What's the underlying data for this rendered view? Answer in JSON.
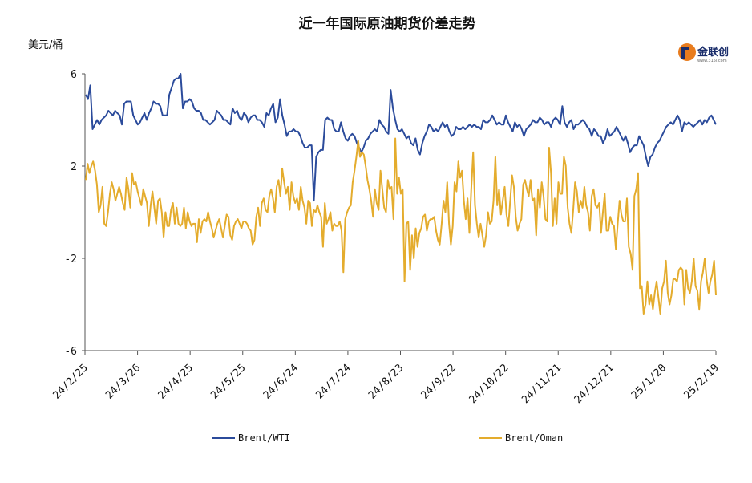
{
  "chart_data": {
    "type": "line",
    "title": "近一年国际原油期货价差走势",
    "ylabel": "美元/桶",
    "xlabel": "",
    "ylim": [
      -6,
      6
    ],
    "yticks": [
      6,
      2,
      -2,
      -6
    ],
    "xlim": [
      "2024-02-25",
      "2025-02-19"
    ],
    "xticks": [
      "24/2/25",
      "24/3/26",
      "24/4/25",
      "24/5/25",
      "24/6/24",
      "24/7/24",
      "24/8/23",
      "24/9/22",
      "24/10/22",
      "24/11/21",
      "24/12/21",
      "25/1/20",
      "25/2/19"
    ],
    "legend_position": "bottom",
    "grid": false,
    "series": [
      {
        "name": "Brent/WTI",
        "color": "#2b4b9b",
        "values": [
          5.1,
          4.9,
          5.5,
          3.6,
          3.8,
          4.0,
          3.8,
          4.0,
          4.1,
          4.2,
          4.4,
          4.3,
          4.2,
          4.4,
          4.3,
          4.2,
          3.8,
          4.7,
          4.8,
          4.8,
          4.8,
          4.2,
          4.0,
          3.8,
          3.9,
          4.1,
          4.3,
          4.0,
          4.3,
          4.5,
          4.8,
          4.7,
          4.7,
          4.6,
          4.2,
          4.2,
          4.2,
          5.1,
          5.4,
          5.7,
          5.8,
          5.8,
          6.0,
          4.5,
          4.8,
          4.8,
          4.9,
          4.8,
          4.5,
          4.4,
          4.4,
          4.3,
          4.0,
          4.0,
          3.9,
          3.8,
          3.9,
          4.0,
          4.4,
          4.3,
          4.2,
          4.0,
          4.0,
          3.9,
          3.8,
          4.5,
          4.3,
          4.4,
          4.1,
          4.0,
          4.3,
          4.2,
          3.9,
          4.1,
          4.2,
          4.2,
          4.0,
          4.0,
          3.9,
          3.7,
          4.3,
          4.2,
          4.5,
          4.7,
          3.9,
          4.1,
          4.9,
          4.2,
          3.8,
          3.3,
          3.5,
          3.5,
          3.6,
          3.5,
          3.5,
          3.3,
          3.0,
          2.8,
          2.8,
          2.9,
          2.9,
          0.5,
          2.4,
          2.6,
          2.7,
          2.7,
          4.0,
          4.1,
          4.0,
          4.0,
          3.6,
          3.5,
          3.5,
          3.9,
          3.5,
          3.2,
          3.1,
          3.3,
          3.4,
          3.3,
          3.0,
          2.8,
          2.6,
          2.8,
          3.1,
          3.2,
          3.4,
          3.5,
          3.6,
          3.5,
          4.0,
          3.8,
          3.7,
          3.5,
          3.4,
          5.3,
          4.5,
          4.0,
          3.6,
          3.5,
          3.6,
          3.4,
          3.2,
          3.3,
          3.0,
          2.9,
          3.2,
          2.7,
          2.5,
          3.0,
          3.3,
          3.5,
          3.8,
          3.7,
          3.5,
          3.6,
          3.5,
          3.7,
          3.9,
          3.7,
          3.8,
          3.5,
          3.3,
          3.4,
          3.7,
          3.6,
          3.6,
          3.7,
          3.6,
          3.7,
          3.8,
          3.7,
          3.8,
          3.7,
          3.7,
          3.6,
          4.0,
          3.9,
          3.9,
          4.0,
          4.2,
          4.0,
          3.8,
          3.9,
          3.8,
          3.8,
          4.2,
          3.9,
          3.7,
          3.5,
          3.9,
          3.7,
          3.8,
          3.6,
          3.3,
          3.6,
          3.7,
          3.8,
          4.0,
          3.9,
          3.9,
          4.1,
          4.0,
          3.8,
          3.9,
          3.9,
          3.7,
          4.0,
          4.1,
          4.0,
          3.8,
          4.6,
          3.9,
          3.7,
          3.9,
          4.0,
          3.6,
          3.8,
          3.8,
          3.9,
          4.0,
          3.9,
          3.7,
          3.6,
          3.3,
          3.6,
          3.5,
          3.3,
          3.3,
          3.0,
          3.2,
          3.6,
          3.3,
          3.4,
          3.5,
          3.7,
          3.5,
          3.3,
          3.1,
          3.3,
          3.0,
          2.6,
          2.8,
          2.9,
          2.9,
          3.3,
          3.1,
          2.9,
          2.4,
          2.0,
          2.4,
          2.5,
          2.8,
          3.0,
          3.1,
          3.3,
          3.5,
          3.7,
          3.8,
          3.9,
          3.8,
          4.0,
          4.2,
          4.0,
          3.5,
          3.9,
          3.8,
          3.9,
          3.8,
          3.7,
          3.8,
          3.9,
          4.0,
          3.8,
          4.0,
          3.9,
          4.1,
          4.2,
          4.0,
          3.8
        ]
      },
      {
        "name": "Brent/Oman",
        "color": "#e4ac2d",
        "values": [
          1.4,
          2.1,
          1.7,
          2.0,
          2.2,
          1.8,
          1.2,
          0.0,
          0.3,
          1.1,
          -0.5,
          -0.6,
          0.0,
          0.8,
          1.3,
          1.0,
          0.5,
          0.8,
          1.1,
          0.8,
          0.4,
          0.1,
          1.5,
          1.0,
          0.2,
          1.7,
          1.2,
          1.3,
          0.9,
          0.6,
          0.3,
          1.0,
          0.7,
          0.4,
          -0.6,
          0.3,
          0.9,
          0.2,
          -0.5,
          0.5,
          0.6,
          0.0,
          -1.1,
          0.0,
          -0.6,
          -0.6,
          0.1,
          0.4,
          -0.5,
          0.2,
          -0.5,
          -0.6,
          -0.5,
          0.2,
          -0.7,
          0.0,
          -0.4,
          -0.6,
          -0.5,
          -0.5,
          -1.3,
          -0.3,
          -0.9,
          -0.4,
          -0.3,
          -0.4,
          0.0,
          -0.4,
          -0.7,
          -1.1,
          -0.8,
          -0.5,
          -0.3,
          -0.7,
          -1.1,
          -0.6,
          -0.1,
          -0.2,
          -1.0,
          -1.2,
          -0.6,
          -0.4,
          -0.3,
          -0.5,
          -0.7,
          -0.4,
          -0.4,
          -0.5,
          -0.7,
          -0.8,
          -1.4,
          -1.2,
          -0.2,
          0.2,
          -0.6,
          0.4,
          0.6,
          0.1,
          0.0,
          0.7,
          1.0,
          0.6,
          0.0,
          1.1,
          1.4,
          0.7,
          1.9,
          1.3,
          0.8,
          1.1,
          0.1,
          1.3,
          0.7,
          0.4,
          0.6,
          0.1,
          1.1,
          0.5,
          0.2,
          -0.5,
          0.5,
          0.4,
          -0.6,
          0.1,
          0.0,
          0.3,
          0.0,
          -0.2,
          -1.5,
          0.4,
          -0.5,
          -0.3,
          0.0,
          -0.8,
          -0.5,
          -0.6,
          -0.6,
          -0.4,
          -0.8,
          -2.6,
          -0.3,
          0.0,
          0.2,
          0.3,
          1.3,
          1.8,
          2.4,
          3.1,
          2.4,
          2.6,
          2.5,
          2.0,
          1.4,
          1.0,
          0.5,
          -0.2,
          1.0,
          0.4,
          0.1,
          1.8,
          1.0,
          0.2,
          0.0,
          1.4,
          1.0,
          1.1,
          -0.3,
          3.2,
          0.8,
          1.5,
          0.8,
          1.0,
          -3.0,
          -0.5,
          -0.4,
          -2.5,
          -1.0,
          -2.0,
          -0.7,
          -1.5,
          -0.9,
          -0.7,
          -0.2,
          -0.1,
          -0.8,
          -0.4,
          -0.3,
          -0.3,
          -0.2,
          -0.8,
          -1.2,
          -1.4,
          -0.5,
          0.5,
          0.0,
          1.3,
          -0.5,
          -1.4,
          -0.6,
          1.3,
          0.9,
          2.2,
          1.5,
          1.8,
          0.5,
          -0.3,
          0.6,
          -0.9,
          1.0,
          2.6,
          0.3,
          -0.5,
          -1.1,
          -0.5,
          -1.0,
          -1.5,
          -1.0,
          0.0,
          -0.5,
          -0.4,
          0.5,
          2.4,
          0.3,
          1.0,
          -0.1,
          0.5,
          1.1,
          -0.1,
          -0.6,
          0.5,
          1.6,
          1.1,
          -0.2,
          -0.8,
          -0.5,
          -0.3,
          1.2,
          1.4,
          1.0,
          0.7,
          1.4,
          0.5,
          0.6,
          -1.0,
          1.0,
          0.2,
          1.3,
          0.7,
          -0.3,
          -0.4,
          2.8,
          1.7,
          -0.6,
          0.6,
          -0.5,
          1.3,
          0.8,
          0.8,
          2.4,
          2.0,
          0.2,
          -0.5,
          -0.9,
          0.1,
          1.3,
          0.9,
          0.0,
          0.5,
          0.2,
          1.1,
          0.3,
          0.0,
          -0.8,
          0.7,
          1.0,
          0.3,
          0.2,
          0.4,
          -0.9,
          0.0,
          0.8,
          -0.8,
          -0.8,
          -0.2,
          -0.5,
          -0.6,
          -1.6,
          -0.5,
          0.5,
          -0.1,
          -0.4,
          -0.4,
          0.6,
          -1.5,
          -1.8,
          -2.5,
          0.7,
          1.0,
          1.7,
          -3.3,
          -3.2,
          -4.4,
          -4.0,
          -3.0,
          -4.0,
          -3.6,
          -4.2,
          -3.5,
          -3.0,
          -3.7,
          -4.4,
          -3.3,
          -3.0,
          -2.1,
          -3.5,
          -4.0,
          -3.6,
          -2.9,
          -2.9,
          -3.0,
          -2.5,
          -2.4,
          -2.5,
          -4.0,
          -2.5,
          -3.3,
          -3.5,
          -3.0,
          -2.0,
          -3.2,
          -3.4,
          -4.2,
          -3.0,
          -2.6,
          -2.0,
          -2.9,
          -3.5,
          -3.0,
          -2.7,
          -2.1,
          -3.6
        ]
      }
    ]
  },
  "logo": {
    "name": "金联创",
    "icon": "jinlianchuang-logo-icon"
  }
}
